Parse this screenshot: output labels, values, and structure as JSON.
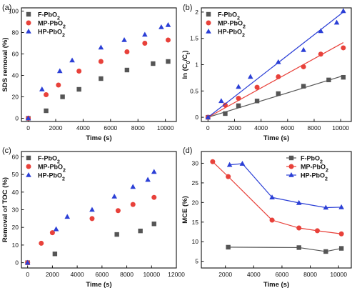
{
  "colors": {
    "F-PbO2": "#555555",
    "MP-PbO2": "#e8413a",
    "HP-PbO2": "#2b3fd6"
  },
  "chart_data": [
    {
      "panel": "(a)",
      "type": "scatter",
      "xlabel": "Time (s)",
      "ylabel": "SDS removal (%)",
      "xlim": [
        -500,
        10800
      ],
      "ylim": [
        -3,
        103
      ],
      "xticks": [
        0,
        2000,
        4000,
        6000,
        8000,
        10000
      ],
      "yticks": [
        0,
        20,
        40,
        60,
        80,
        100
      ],
      "legend_position": "top-left",
      "series": [
        {
          "name": "F-PbO2",
          "label": {
            "base": "F-PbO",
            "sub": "2"
          },
          "marker": "square",
          "x": [
            0,
            1300,
            2500,
            3700,
            5300,
            7200,
            9100,
            10200
          ],
          "y": [
            0,
            7,
            20,
            27,
            37,
            45,
            51,
            53
          ]
        },
        {
          "name": "MP-PbO2",
          "label": {
            "base": "MP-PbO",
            "sub": "2"
          },
          "marker": "circle",
          "x": [
            0,
            1300,
            2200,
            3700,
            5300,
            7200,
            8500,
            10200
          ],
          "y": [
            0,
            22,
            31,
            44,
            53,
            62,
            70,
            73
          ]
        },
        {
          "name": "HP-PbO2",
          "label": {
            "base": "HP-PbO",
            "sub": "2"
          },
          "marker": "triangle",
          "x": [
            0,
            1000,
            2300,
            3200,
            5300,
            7000,
            8500,
            9700,
            10200
          ],
          "y": [
            0,
            27,
            44,
            54,
            66,
            73,
            78,
            85,
            87
          ]
        }
      ]
    },
    {
      "panel": "(b)",
      "type": "scatter+fit",
      "xlabel": "Time (s)",
      "ylabel": {
        "base": "ln (C",
        "s1": "0",
        "mid": "/C",
        "s2": "t",
        "end": ")"
      },
      "xlim": [
        -500,
        10800
      ],
      "ylim": [
        -0.08,
        2.08
      ],
      "xticks": [
        0,
        2000,
        4000,
        6000,
        8000,
        10000
      ],
      "yticks": [
        0.0,
        0.5,
        1.0,
        1.5,
        2.0
      ],
      "legend_position": "top-left",
      "series": [
        {
          "name": "F-PbO2",
          "label": {
            "base": "F-PbO",
            "sub": "2"
          },
          "marker": "square",
          "x": [
            0,
            1300,
            2300,
            3700,
            5300,
            7200,
            9100,
            10200
          ],
          "y": [
            0,
            0.07,
            0.22,
            0.31,
            0.45,
            0.59,
            0.71,
            0.76
          ],
          "fit": [
            [
              0,
              0
            ],
            [
              10200,
              0.79
            ]
          ]
        },
        {
          "name": "MP-PbO2",
          "label": {
            "base": "MP-PbO",
            "sub": "2"
          },
          "marker": "circle",
          "x": [
            0,
            1300,
            2300,
            3700,
            5300,
            7200,
            8500,
            10200
          ],
          "y": [
            0,
            0.23,
            0.36,
            0.57,
            0.77,
            0.96,
            1.2,
            1.32
          ],
          "fit": [
            [
              0,
              0
            ],
            [
              10200,
              1.42
            ]
          ]
        },
        {
          "name": "HP-PbO2",
          "label": {
            "base": "HP-PbO",
            "sub": "2"
          },
          "marker": "triangle",
          "x": [
            0,
            1000,
            2300,
            3200,
            5300,
            7200,
            8500,
            9700,
            10200
          ],
          "y": [
            0,
            0.31,
            0.58,
            0.77,
            1.05,
            1.28,
            1.64,
            1.8,
            2.02
          ],
          "fit": [
            [
              0,
              0
            ],
            [
              10200,
              2.0
            ]
          ]
        }
      ]
    },
    {
      "panel": "(c)",
      "type": "scatter",
      "xlabel": "Time (s)",
      "ylabel": "Removal of TOC (%)",
      "xlim": [
        -500,
        12000
      ],
      "ylim": [
        -3,
        63
      ],
      "xticks": [
        0,
        2000,
        4000,
        6000,
        8000,
        10000,
        12000
      ],
      "yticks": [
        0,
        10,
        20,
        30,
        40,
        50,
        60
      ],
      "legend_position": "top-left",
      "series": [
        {
          "name": "F-PbO2",
          "label": {
            "base": "F-PbO",
            "sub": "2"
          },
          "marker": "square",
          "x": [
            0,
            2200,
            7200,
            9100,
            10200
          ],
          "y": [
            0,
            5,
            16,
            18,
            22
          ]
        },
        {
          "name": "MP-PbO2",
          "label": {
            "base": "MP-PbO",
            "sub": "2"
          },
          "marker": "circle",
          "x": [
            0,
            1100,
            2000,
            5200,
            7300,
            8500,
            10200
          ],
          "y": [
            0,
            11,
            17,
            25,
            29.5,
            33,
            37
          ]
        },
        {
          "name": "HP-PbO2",
          "label": {
            "base": "HP-PbO",
            "sub": "2"
          },
          "marker": "triangle",
          "x": [
            0,
            2300,
            3200,
            5200,
            7000,
            8500,
            9700,
            10200
          ],
          "y": [
            0,
            19,
            26,
            30,
            37.5,
            43,
            47,
            51.5
          ]
        }
      ]
    },
    {
      "panel": "(d)",
      "type": "line",
      "xlabel": "Time (s)",
      "ylabel": "MCE (%)",
      "xlim": [
        300,
        10900
      ],
      "ylim": [
        3.3,
        33
      ],
      "xticks": [
        2000,
        4000,
        6000,
        8000,
        10000
      ],
      "yticks": [
        5,
        10,
        15,
        20,
        25,
        30
      ],
      "legend_position": "top-right",
      "series": [
        {
          "name": "F-PbO2",
          "label": {
            "base": "F-PbO",
            "sub": "2"
          },
          "marker": "square",
          "x": [
            2200,
            7200,
            9100,
            10200
          ],
          "y": [
            8.6,
            8.5,
            7.5,
            8.3
          ]
        },
        {
          "name": "MP-PbO2",
          "label": {
            "base": "MP-PbO",
            "sub": "2"
          },
          "marker": "circle",
          "x": [
            1100,
            2200,
            5300,
            7200,
            8500,
            10200
          ],
          "y": [
            30.4,
            26.6,
            15.5,
            13.5,
            12.8,
            12.0
          ]
        },
        {
          "name": "HP-PbO2",
          "label": {
            "base": "HP-PbO",
            "sub": "2"
          },
          "marker": "triangle",
          "x": [
            2300,
            3200,
            5300,
            7200,
            9100,
            10200
          ],
          "y": [
            29.6,
            29.9,
            21.3,
            19.9,
            18.7,
            18.8
          ]
        }
      ]
    }
  ]
}
